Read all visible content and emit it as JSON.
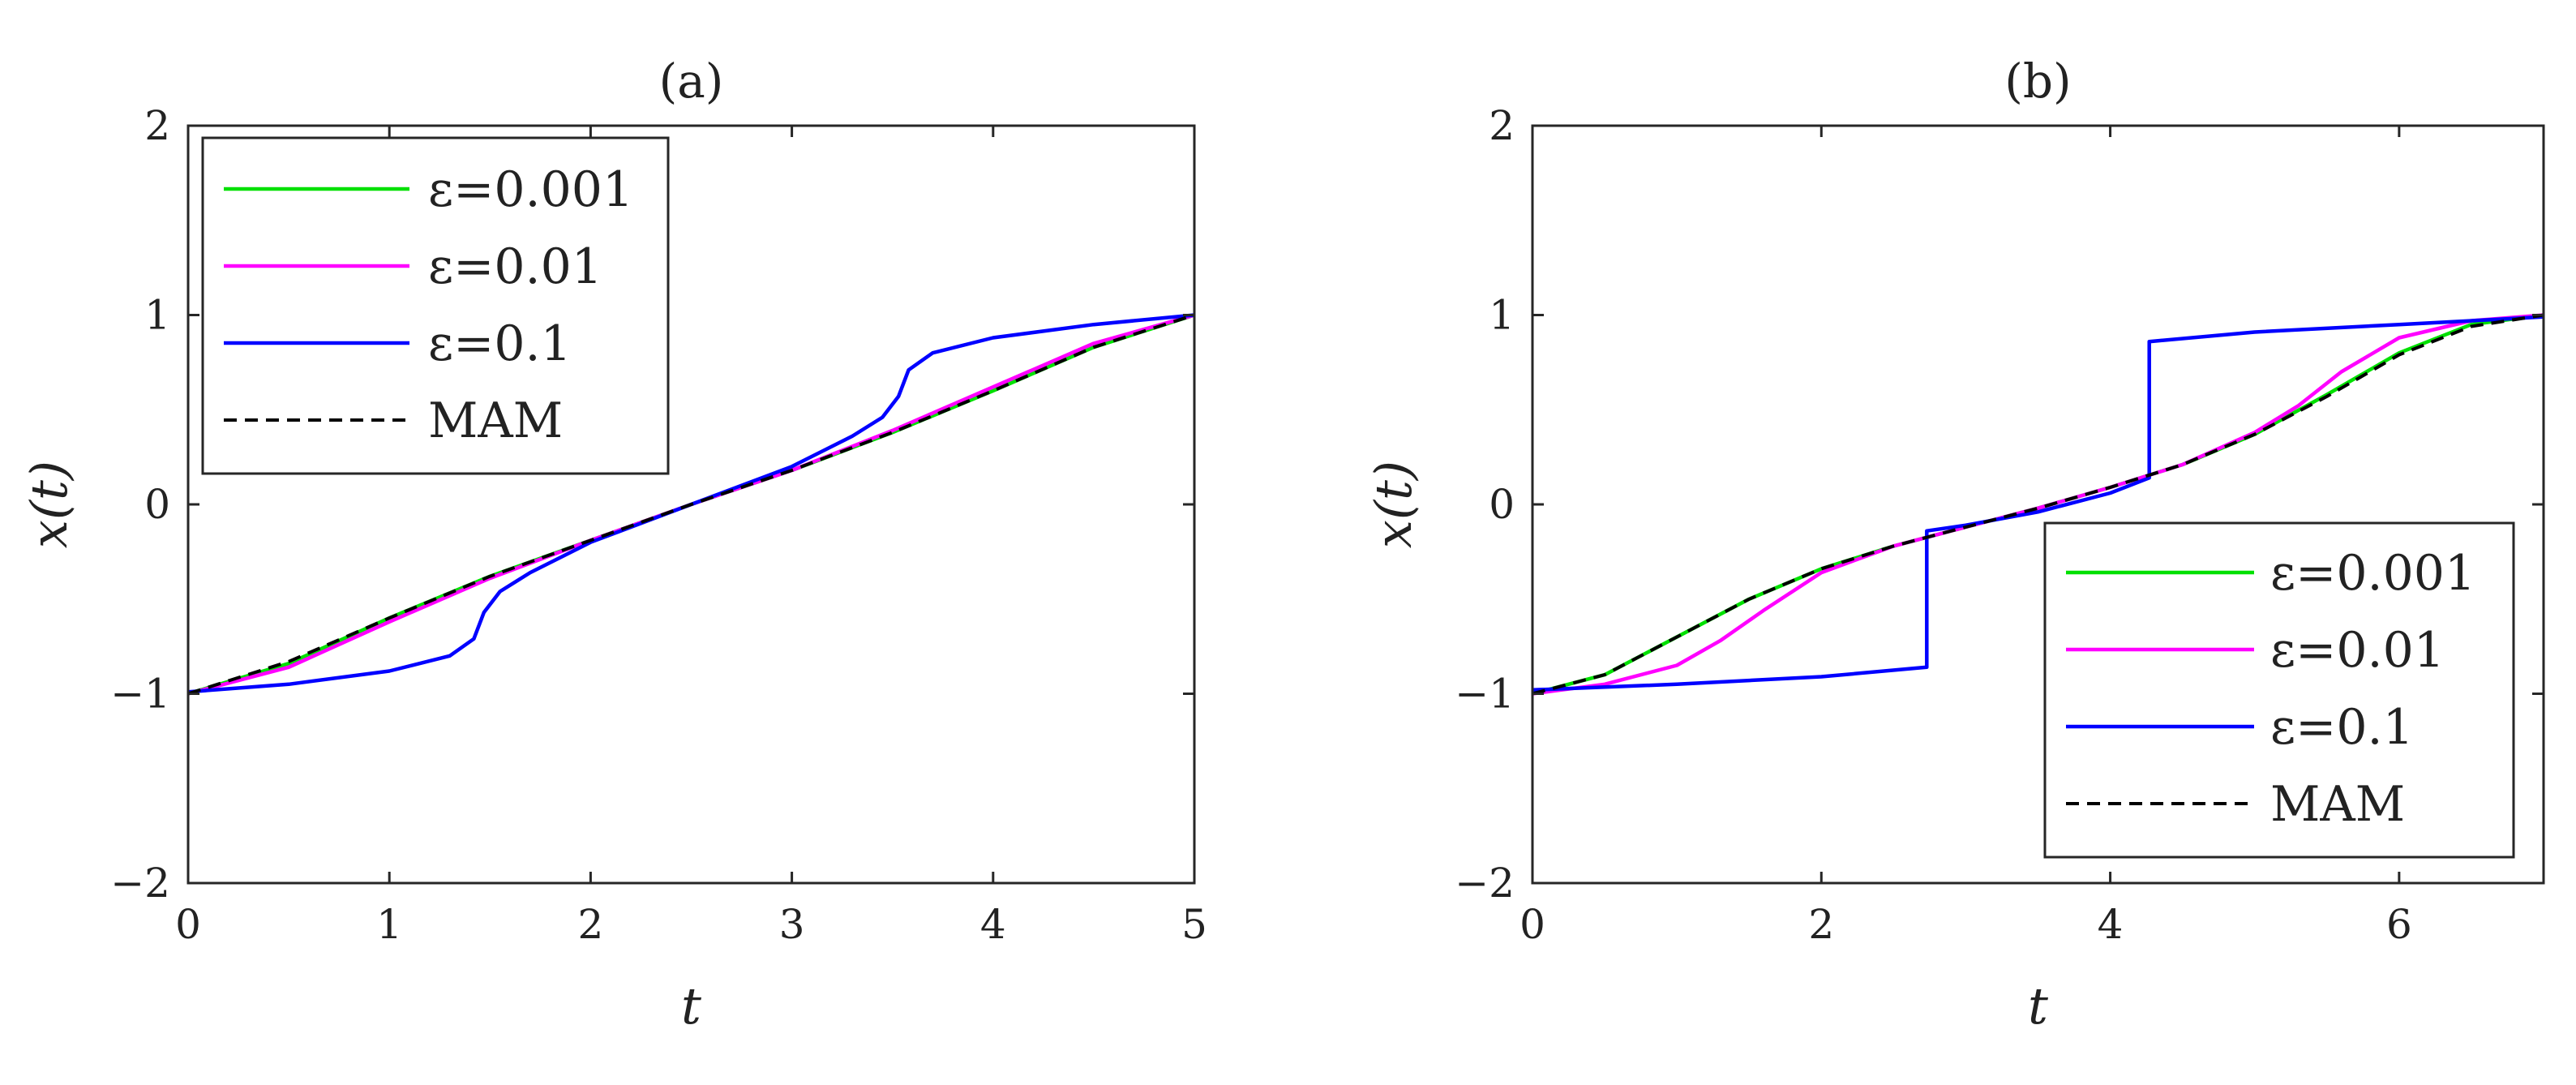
{
  "chart_data": [
    {
      "type": "line",
      "title": "(a)",
      "xlabel": "t",
      "ylabel": "x(t)",
      "xlim": [
        0,
        5
      ],
      "ylim": [
        -2,
        2
      ],
      "xticks": [
        "0",
        "1",
        "2",
        "3",
        "4",
        "5"
      ],
      "yticks": [
        "2",
        "1",
        "0",
        "−1",
        "−2"
      ],
      "grid": false,
      "legend_position": "top-left",
      "series": [
        {
          "name": "ε=0.001",
          "color": "#00e000",
          "style": "solid",
          "x": [
            0,
            0.5,
            1,
            1.5,
            2,
            2.5,
            3,
            3.5,
            4,
            4.5,
            5
          ],
          "y": [
            -1,
            -0.84,
            -0.6,
            -0.38,
            -0.19,
            0,
            0.18,
            0.38,
            0.6,
            0.83,
            1
          ]
        },
        {
          "name": "ε=0.01",
          "color": "#ff00ff",
          "style": "solid",
          "x": [
            0,
            0.5,
            1,
            1.5,
            2,
            2.5,
            3,
            3.5,
            4,
            4.5,
            5
          ],
          "y": [
            -1,
            -0.86,
            -0.62,
            -0.39,
            -0.19,
            0,
            0.18,
            0.39,
            0.62,
            0.85,
            1
          ]
        },
        {
          "name": "ε=0.1",
          "color": "#0000ff",
          "style": "solid",
          "x": [
            0,
            0.5,
            1,
            1.3,
            1.42,
            1.47,
            1.55,
            1.7,
            2,
            2.5,
            3,
            3.3,
            3.45,
            3.53,
            3.58,
            3.7,
            4,
            4.5,
            5
          ],
          "y": [
            -0.99,
            -0.95,
            -0.88,
            -0.8,
            -0.71,
            -0.57,
            -0.46,
            -0.36,
            -0.2,
            0,
            0.2,
            0.36,
            0.46,
            0.57,
            0.71,
            0.8,
            0.88,
            0.95,
            1
          ]
        },
        {
          "name": "MAM",
          "color": "#000000",
          "style": "dashed",
          "x": [
            0,
            0.5,
            1,
            1.5,
            2,
            2.5,
            3,
            3.5,
            4,
            4.5,
            5
          ],
          "y": [
            -1,
            -0.83,
            -0.6,
            -0.38,
            -0.19,
            0,
            0.18,
            0.38,
            0.6,
            0.83,
            1
          ]
        }
      ]
    },
    {
      "type": "line",
      "title": "(b)",
      "xlabel": "t",
      "ylabel": "x(t)",
      "xlim": [
        0,
        7
      ],
      "ylim": [
        -2,
        2
      ],
      "xticks": [
        "0",
        "2",
        "4",
        "6"
      ],
      "yticks": [
        "2",
        "1",
        "0",
        "−1",
        "−2"
      ],
      "grid": false,
      "legend_position": "bottom-right",
      "series": [
        {
          "name": "ε=0.001",
          "color": "#00e000",
          "style": "solid",
          "x": [
            0,
            0.5,
            1,
            1.5,
            2,
            2.5,
            3,
            3.5,
            4,
            4.5,
            5,
            5.5,
            6,
            6.5,
            7
          ],
          "y": [
            -1,
            -0.9,
            -0.7,
            -0.5,
            -0.34,
            -0.22,
            -0.12,
            -0.02,
            0.09,
            0.21,
            0.37,
            0.58,
            0.8,
            0.95,
            1
          ]
        },
        {
          "name": "ε=0.01",
          "color": "#ff00ff",
          "style": "solid",
          "x": [
            0,
            0.5,
            1,
            1.3,
            1.6,
            2,
            2.5,
            3,
            3.5,
            4,
            4.5,
            5,
            5.3,
            5.6,
            6,
            6.5,
            7
          ],
          "y": [
            -1,
            -0.95,
            -0.85,
            -0.72,
            -0.56,
            -0.36,
            -0.22,
            -0.12,
            -0.02,
            0.09,
            0.21,
            0.38,
            0.52,
            0.7,
            0.88,
            0.97,
            1
          ]
        },
        {
          "name": "ε=0.1",
          "color": "#0000ff",
          "style": "solid",
          "x": [
            0,
            1,
            2,
            2.73,
            2.73,
            3,
            3.5,
            4,
            4.27,
            4.27,
            5,
            6,
            7
          ],
          "y": [
            -0.98,
            -0.95,
            -0.91,
            -0.86,
            -0.14,
            -0.11,
            -0.04,
            0.06,
            0.14,
            0.86,
            0.91,
            0.95,
            0.99
          ]
        },
        {
          "name": "MAM",
          "color": "#000000",
          "style": "dashed",
          "x": [
            0,
            0.5,
            1,
            1.5,
            2,
            2.5,
            3,
            3.5,
            4,
            4.5,
            5,
            5.5,
            6,
            6.5,
            7
          ],
          "y": [
            -1,
            -0.9,
            -0.7,
            -0.5,
            -0.34,
            -0.22,
            -0.12,
            -0.02,
            0.09,
            0.21,
            0.37,
            0.57,
            0.79,
            0.94,
            1
          ]
        }
      ]
    }
  ]
}
